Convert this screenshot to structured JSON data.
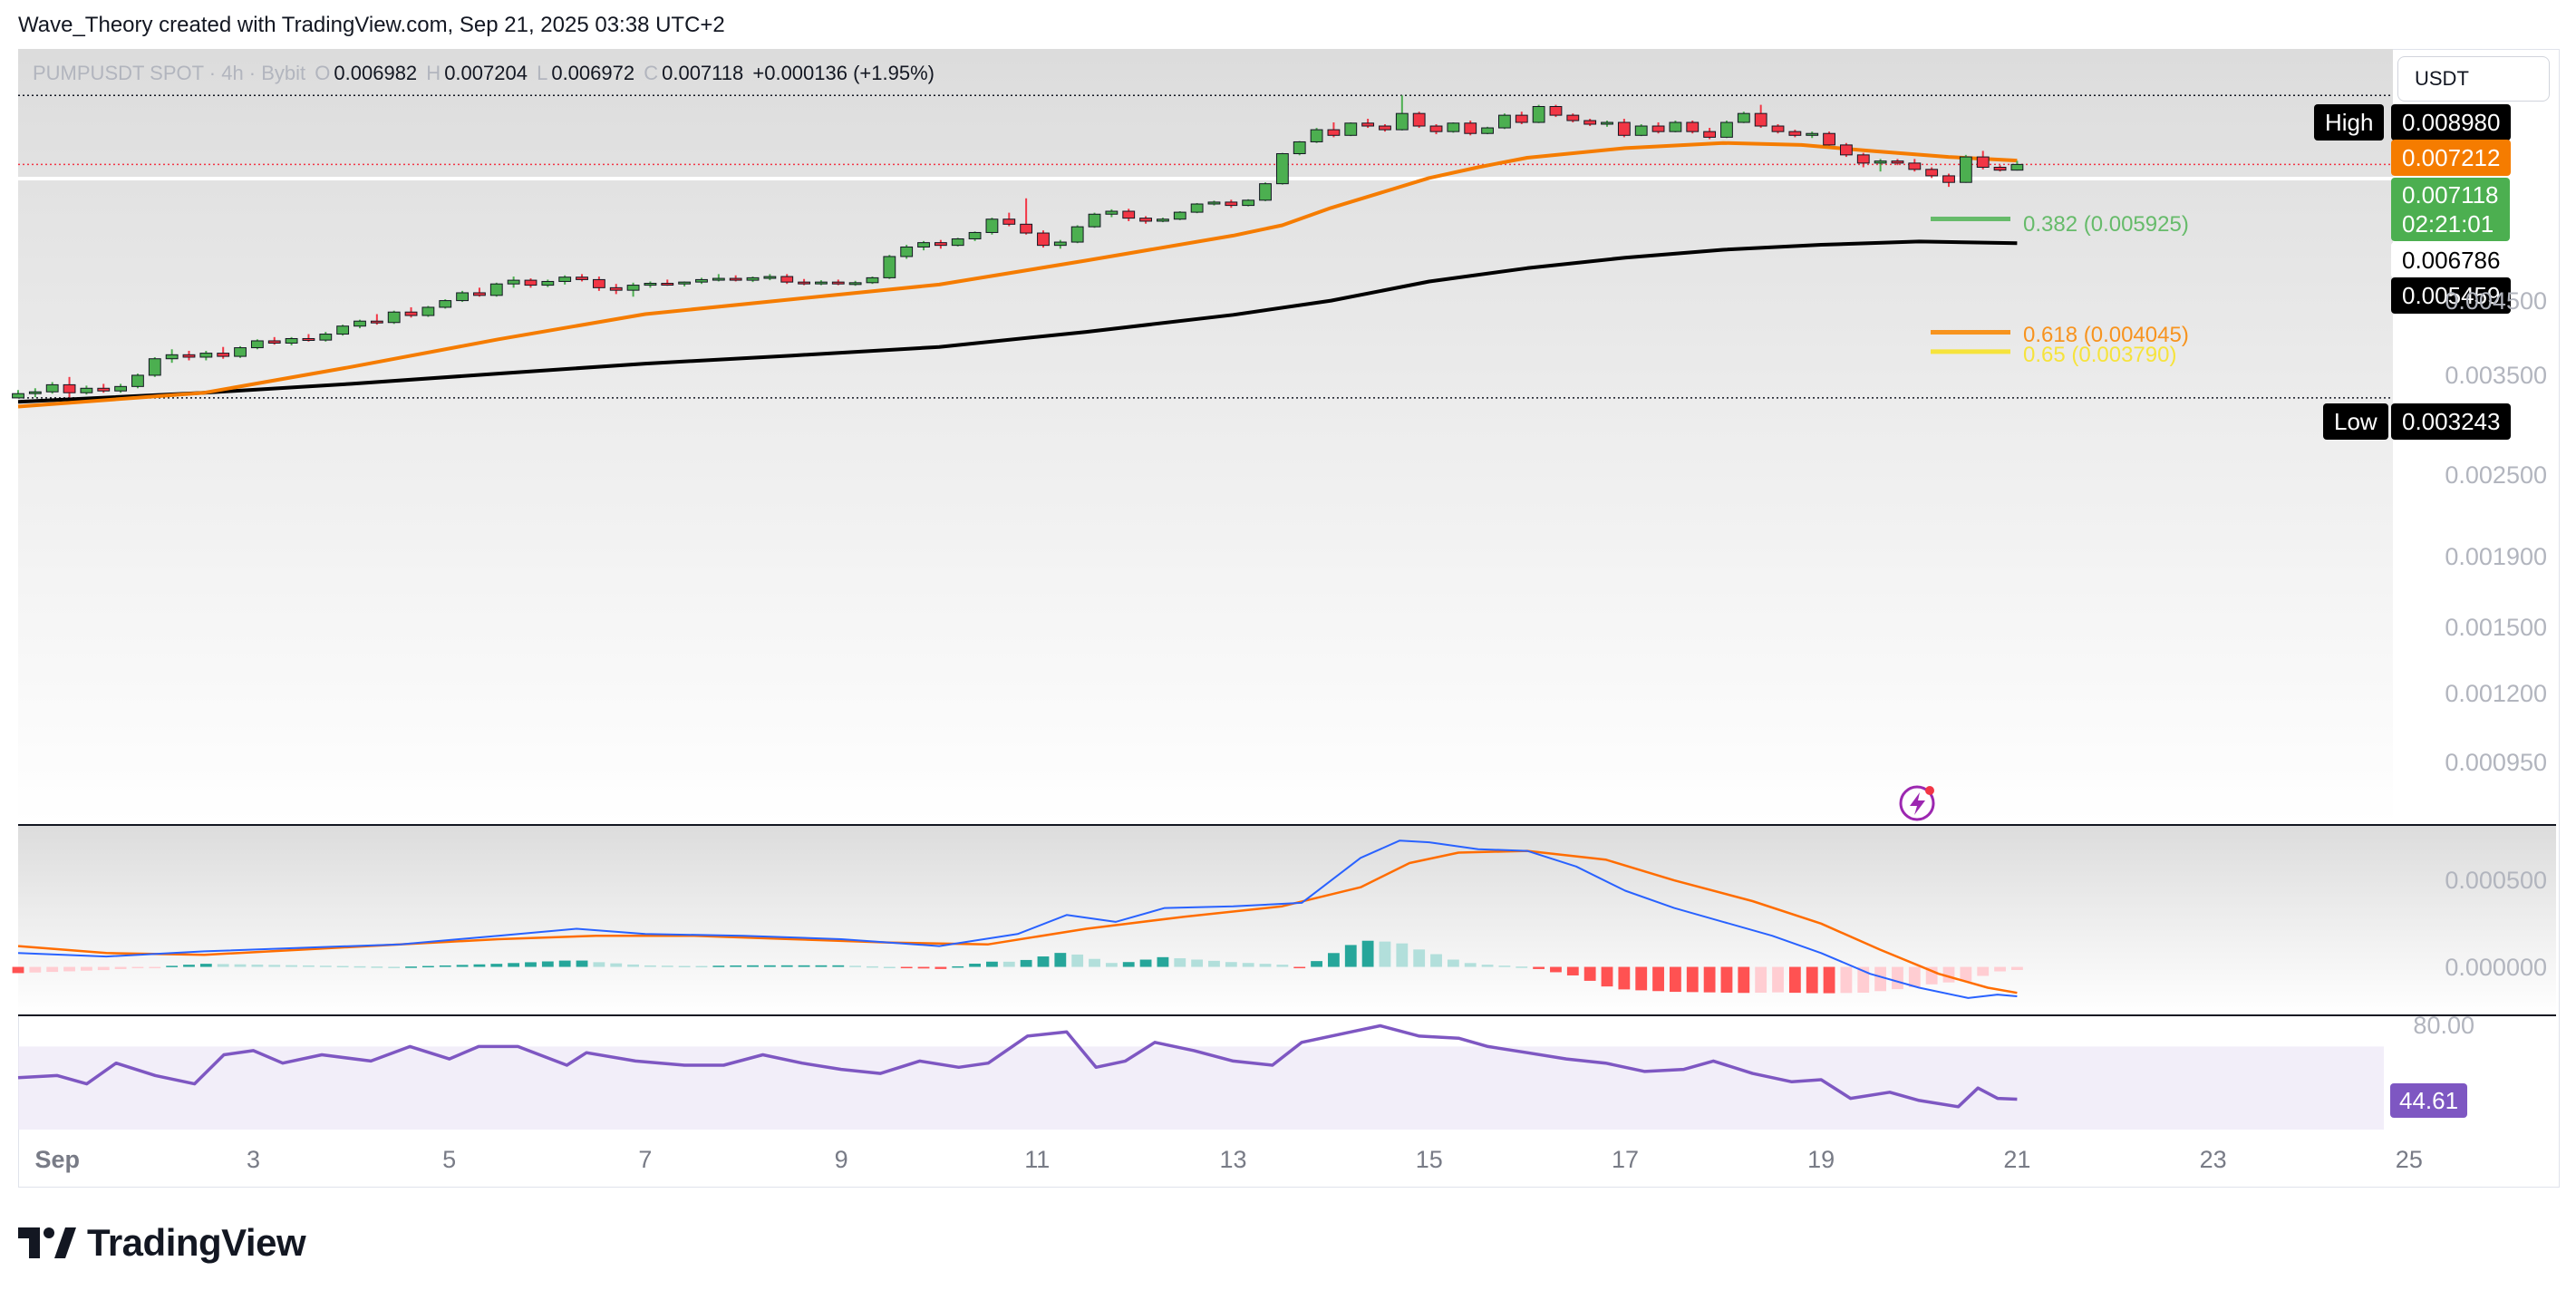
{
  "header": {
    "credit": "Wave_Theory created with TradingView.com, Sep 21, 2025 03:38 UTC+2"
  },
  "legend": {
    "symbol": "PUMPUSDT SPOT · 4h · Bybit",
    "o_label": "O",
    "o": "0.006982",
    "h_label": "H",
    "h": "0.007204",
    "l_label": "L",
    "l": "0.006972",
    "c_label": "C",
    "c": "0.007118",
    "change": "+0.000136 (+1.95%)"
  },
  "currency": "USDT",
  "tags": {
    "high_label": "High",
    "high_value": "0.008980",
    "ema50_value": "0.007212",
    "last_value": "0.007118",
    "countdown": "02:21:01",
    "level_value": "0.006786",
    "ema200_value": "0.005459",
    "low_label": "Low",
    "low_value": "0.003243",
    "rsi_value": "44.61"
  },
  "fib": {
    "f382": "0.382 (0.005925)",
    "f618": "0.618 (0.004045)",
    "f65": "0.65 (0.003790)"
  },
  "colors": {
    "up": "#4caf50",
    "down": "#f23645",
    "ema50": "#f57c00",
    "ema200": "#000000",
    "macd": "#2962ff",
    "signal": "#ff6d00",
    "rsi": "#7e57c2",
    "fib382": "#66bb6a",
    "fib618": "#f7931e",
    "fib65": "#f6e33c",
    "hist_up_strong": "#26a69a",
    "hist_up_weak": "#b2dfdb",
    "hist_down_strong": "#ff5252",
    "hist_down_weak": "#ffcdd2"
  },
  "chart_data": {
    "type": "candlestick",
    "scale": "log",
    "x_ticks": [
      "Sep",
      "3",
      "5",
      "7",
      "9",
      "11",
      "13",
      "15",
      "17",
      "19",
      "21",
      "23",
      "25"
    ],
    "x_tick_days": [
      1,
      3,
      5,
      7,
      9,
      11,
      13,
      15,
      17,
      19,
      21,
      23,
      25
    ],
    "x_range_days": [
      0.6,
      26.5
    ],
    "y_ticks": [
      0.0045,
      0.0035,
      0.0025,
      0.0019,
      0.0015,
      0.0012,
      0.00095
    ],
    "y_tick_labels": [
      "0.004500",
      "0.003500",
      "0.002500",
      "0.001900",
      "0.001500",
      "0.001200",
      "0.000950"
    ],
    "ylim": [
      0.00077,
      0.0105
    ],
    "ohlc": [
      [
        0.003243,
        0.00333,
        0.003243,
        0.00329
      ],
      [
        0.00329,
        0.00335,
        0.00325,
        0.00331
      ],
      [
        0.00331,
        0.00342,
        0.00329,
        0.00339
      ],
      [
        0.00339,
        0.00348,
        0.00325,
        0.0033
      ],
      [
        0.0033,
        0.00338,
        0.00328,
        0.00335
      ],
      [
        0.00335,
        0.0034,
        0.0033,
        0.00332
      ],
      [
        0.00332,
        0.0034,
        0.0033,
        0.00337
      ],
      [
        0.00337,
        0.00352,
        0.00335,
        0.0035
      ],
      [
        0.0035,
        0.00372,
        0.00348,
        0.0037
      ],
      [
        0.0037,
        0.00382,
        0.00365,
        0.00375
      ],
      [
        0.00375,
        0.0038,
        0.00368,
        0.00372
      ],
      [
        0.00372,
        0.0038,
        0.00368,
        0.00377
      ],
      [
        0.00377,
        0.00385,
        0.0037,
        0.00373
      ],
      [
        0.00373,
        0.00386,
        0.00371,
        0.00384
      ],
      [
        0.00384,
        0.00395,
        0.00382,
        0.00393
      ],
      [
        0.00393,
        0.00398,
        0.00388,
        0.0039
      ],
      [
        0.0039,
        0.00398,
        0.00387,
        0.00396
      ],
      [
        0.00396,
        0.00402,
        0.00392,
        0.00394
      ],
      [
        0.00394,
        0.00405,
        0.00392,
        0.00402
      ],
      [
        0.00402,
        0.00415,
        0.004,
        0.00413
      ],
      [
        0.00413,
        0.00422,
        0.0041,
        0.0042
      ],
      [
        0.0042,
        0.0043,
        0.00415,
        0.00418
      ],
      [
        0.00418,
        0.00435,
        0.00416,
        0.00433
      ],
      [
        0.00433,
        0.0044,
        0.00425,
        0.00428
      ],
      [
        0.00428,
        0.00442,
        0.00426,
        0.0044
      ],
      [
        0.0044,
        0.00452,
        0.00438,
        0.0045
      ],
      [
        0.0045,
        0.00465,
        0.00448,
        0.00462
      ],
      [
        0.00462,
        0.0047,
        0.00456,
        0.00458
      ],
      [
        0.00458,
        0.00478,
        0.00456,
        0.00476
      ],
      [
        0.00476,
        0.00488,
        0.0047,
        0.00482
      ],
      [
        0.00482,
        0.00485,
        0.0047,
        0.00474
      ],
      [
        0.00474,
        0.00483,
        0.00471,
        0.0048
      ],
      [
        0.0048,
        0.0049,
        0.00475,
        0.00487
      ],
      [
        0.00487,
        0.00492,
        0.0048,
        0.00483
      ],
      [
        0.00483,
        0.00488,
        0.00465,
        0.0047
      ],
      [
        0.0047,
        0.00476,
        0.0046,
        0.00466
      ],
      [
        0.00466,
        0.00478,
        0.00456,
        0.00474
      ],
      [
        0.00474,
        0.0048,
        0.0047,
        0.00477
      ],
      [
        0.00477,
        0.00483,
        0.00473,
        0.00476
      ],
      [
        0.00476,
        0.0048,
        0.00472,
        0.00479
      ],
      [
        0.00479,
        0.00486,
        0.00476,
        0.00483
      ],
      [
        0.00483,
        0.00492,
        0.0048,
        0.00485
      ],
      [
        0.00485,
        0.0049,
        0.0048,
        0.00482
      ],
      [
        0.00482,
        0.00488,
        0.00479,
        0.00486
      ],
      [
        0.00486,
        0.00492,
        0.00482,
        0.00488
      ],
      [
        0.00488,
        0.00492,
        0.00476,
        0.00479
      ],
      [
        0.00479,
        0.00484,
        0.00474,
        0.00477
      ],
      [
        0.00477,
        0.00482,
        0.00474,
        0.00479
      ],
      [
        0.00479,
        0.00483,
        0.00474,
        0.00476
      ],
      [
        0.00476,
        0.00481,
        0.00473,
        0.00478
      ],
      [
        0.00478,
        0.00488,
        0.00476,
        0.00486
      ],
      [
        0.00486,
        0.00525,
        0.00484,
        0.00522
      ],
      [
        0.00522,
        0.00543,
        0.00518,
        0.00539
      ],
      [
        0.00539,
        0.0055,
        0.00533,
        0.00547
      ],
      [
        0.00547,
        0.00552,
        0.00536,
        0.00542
      ],
      [
        0.00542,
        0.00556,
        0.0054,
        0.00554
      ],
      [
        0.00554,
        0.00568,
        0.0055,
        0.00566
      ],
      [
        0.00566,
        0.00595,
        0.00562,
        0.00592
      ],
      [
        0.00592,
        0.00605,
        0.00578,
        0.00582
      ],
      [
        0.00582,
        0.00635,
        0.00562,
        0.00565
      ],
      [
        0.00565,
        0.0057,
        0.00538,
        0.00542
      ],
      [
        0.00542,
        0.00552,
        0.00536,
        0.00548
      ],
      [
        0.00548,
        0.0058,
        0.00546,
        0.00577
      ],
      [
        0.00577,
        0.00605,
        0.00575,
        0.00602
      ],
      [
        0.00602,
        0.00612,
        0.00596,
        0.00608
      ],
      [
        0.00608,
        0.00613,
        0.00588,
        0.00594
      ],
      [
        0.00594,
        0.00598,
        0.00583,
        0.00588
      ],
      [
        0.00588,
        0.00595,
        0.00586,
        0.00592
      ],
      [
        0.00592,
        0.00608,
        0.0059,
        0.00606
      ],
      [
        0.00606,
        0.00625,
        0.00604,
        0.00623
      ],
      [
        0.00623,
        0.0063,
        0.0062,
        0.00627
      ],
      [
        0.00627,
        0.00632,
        0.00615,
        0.0062
      ],
      [
        0.0062,
        0.00633,
        0.00618,
        0.00631
      ],
      [
        0.00631,
        0.0067,
        0.00629,
        0.00667
      ],
      [
        0.00667,
        0.0074,
        0.00665,
        0.00738
      ],
      [
        0.00738,
        0.0077,
        0.00734,
        0.00768
      ],
      [
        0.00768,
        0.00805,
        0.00765,
        0.008
      ],
      [
        0.008,
        0.0082,
        0.0078,
        0.00785
      ],
      [
        0.00785,
        0.0082,
        0.00783,
        0.00818
      ],
      [
        0.00818,
        0.0083,
        0.00805,
        0.0081
      ],
      [
        0.0081,
        0.00815,
        0.00795,
        0.008
      ],
      [
        0.008,
        0.00898,
        0.00798,
        0.00845
      ],
      [
        0.00845,
        0.0085,
        0.00805,
        0.0081
      ],
      [
        0.0081,
        0.00815,
        0.00788,
        0.00795
      ],
      [
        0.00795,
        0.0082,
        0.00792,
        0.00818
      ],
      [
        0.00818,
        0.00825,
        0.00785,
        0.0079
      ],
      [
        0.0079,
        0.00808,
        0.00788,
        0.00805
      ],
      [
        0.00805,
        0.00845,
        0.00802,
        0.0084
      ],
      [
        0.0084,
        0.0085,
        0.00815,
        0.0082
      ],
      [
        0.0082,
        0.0087,
        0.00818,
        0.00865
      ],
      [
        0.00865,
        0.0087,
        0.00835,
        0.0084
      ],
      [
        0.0084,
        0.00845,
        0.0082,
        0.00825
      ],
      [
        0.00825,
        0.0083,
        0.0081,
        0.00815
      ],
      [
        0.00815,
        0.00825,
        0.00808,
        0.0082
      ],
      [
        0.0082,
        0.0083,
        0.0078,
        0.00785
      ],
      [
        0.00785,
        0.00815,
        0.00783,
        0.0081
      ],
      [
        0.0081,
        0.0082,
        0.0079,
        0.00795
      ],
      [
        0.00795,
        0.00825,
        0.00793,
        0.0082
      ],
      [
        0.0082,
        0.00825,
        0.0079,
        0.00795
      ],
      [
        0.00795,
        0.00805,
        0.00775,
        0.0078
      ],
      [
        0.0078,
        0.00825,
        0.00778,
        0.0082
      ],
      [
        0.0082,
        0.0085,
        0.00818,
        0.00845
      ],
      [
        0.00845,
        0.0087,
        0.00805,
        0.0081
      ],
      [
        0.0081,
        0.00815,
        0.0079,
        0.00795
      ],
      [
        0.00795,
        0.008,
        0.0078,
        0.00785
      ],
      [
        0.00785,
        0.00795,
        0.00778,
        0.0079
      ],
      [
        0.0079,
        0.00795,
        0.00758,
        0.0076
      ],
      [
        0.0076,
        0.00765,
        0.0073,
        0.00735
      ],
      [
        0.00735,
        0.0074,
        0.00705,
        0.00715
      ],
      [
        0.00715,
        0.00725,
        0.00695,
        0.0072
      ],
      [
        0.0072,
        0.00725,
        0.0071,
        0.00715
      ],
      [
        0.00715,
        0.00725,
        0.00695,
        0.007
      ],
      [
        0.007,
        0.00705,
        0.0068,
        0.00685
      ],
      [
        0.00685,
        0.0069,
        0.0066,
        0.0067
      ],
      [
        0.0067,
        0.00735,
        0.00669,
        0.0073
      ],
      [
        0.0073,
        0.00745,
        0.007,
        0.00705
      ],
      [
        0.00705,
        0.0071,
        0.00695,
        0.006982
      ],
      [
        0.006982,
        0.007204,
        0.006972,
        0.007118
      ]
    ],
    "ema50": [
      [
        0.6,
        0.00315
      ],
      [
        2.5,
        0.0033
      ],
      [
        4,
        0.0036
      ],
      [
        5.5,
        0.00395
      ],
      [
        7,
        0.0043
      ],
      [
        8.5,
        0.00452
      ],
      [
        10,
        0.00475
      ],
      [
        11.5,
        0.00515
      ],
      [
        13,
        0.0056
      ],
      [
        13.5,
        0.0058
      ],
      [
        14,
        0.00615
      ],
      [
        15,
        0.0068
      ],
      [
        15.5,
        0.00705
      ],
      [
        16,
        0.00728
      ],
      [
        17,
        0.00752
      ],
      [
        18,
        0.00765
      ],
      [
        18.8,
        0.0076
      ],
      [
        19.5,
        0.00745
      ],
      [
        20.3,
        0.0073
      ],
      [
        21,
        0.007212
      ]
    ],
    "ema200": [
      [
        0.6,
        0.0032
      ],
      [
        2.5,
        0.0033
      ],
      [
        4,
        0.0034
      ],
      [
        5.5,
        0.00352
      ],
      [
        7,
        0.00364
      ],
      [
        8.5,
        0.00374
      ],
      [
        10,
        0.00385
      ],
      [
        11.5,
        0.00405
      ],
      [
        13,
        0.00429
      ],
      [
        14,
        0.0045
      ],
      [
        15,
        0.0048
      ],
      [
        16,
        0.00502
      ],
      [
        17,
        0.0052
      ],
      [
        18,
        0.00534
      ],
      [
        19,
        0.00543
      ],
      [
        20,
        0.00549
      ],
      [
        21,
        0.005459
      ]
    ],
    "macd_indicator": {
      "yticks": [
        0.0005,
        0.0
      ],
      "ytick_labels": [
        "0.000500",
        "0.000000"
      ],
      "ylim": [
        -0.00028,
        0.00082
      ],
      "macd": [
        [
          0.6,
          8e-05
        ],
        [
          1.5,
          6e-05
        ],
        [
          2.5,
          9e-05
        ],
        [
          3.5,
          0.00011
        ],
        [
          4.5,
          0.00013
        ],
        [
          5.5,
          0.00018
        ],
        [
          6.3,
          0.00022
        ],
        [
          7,
          0.00019
        ],
        [
          8,
          0.00018
        ],
        [
          9,
          0.00016
        ],
        [
          10,
          0.00012
        ],
        [
          10.8,
          0.00019
        ],
        [
          11.3,
          0.0003
        ],
        [
          11.8,
          0.00026
        ],
        [
          12.3,
          0.00034
        ],
        [
          13,
          0.00035
        ],
        [
          13.7,
          0.00037
        ],
        [
          14.3,
          0.00063
        ],
        [
          14.7,
          0.00073
        ],
        [
          15,
          0.00072
        ],
        [
          15.5,
          0.00068
        ],
        [
          16,
          0.00067
        ],
        [
          16.5,
          0.00058
        ],
        [
          17,
          0.00044
        ],
        [
          17.5,
          0.00034
        ],
        [
          18,
          0.00026
        ],
        [
          18.5,
          0.00018
        ],
        [
          19,
          8e-05
        ],
        [
          19.5,
          -4e-05
        ],
        [
          20,
          -0.00012
        ],
        [
          20.5,
          -0.00018
        ],
        [
          20.8,
          -0.00016
        ],
        [
          21,
          -0.00017
        ]
      ],
      "signal": [
        [
          0.6,
          0.00012
        ],
        [
          1.5,
          8e-05
        ],
        [
          2.5,
          7e-05
        ],
        [
          3.5,
          0.0001
        ],
        [
          4.5,
          0.00013
        ],
        [
          5.5,
          0.00016
        ],
        [
          6.5,
          0.00018
        ],
        [
          7.5,
          0.00018
        ],
        [
          8.5,
          0.00016
        ],
        [
          9.5,
          0.00014
        ],
        [
          10.5,
          0.00013
        ],
        [
          11.5,
          0.00022
        ],
        [
          12.5,
          0.00029
        ],
        [
          13.5,
          0.00035
        ],
        [
          14.3,
          0.00046
        ],
        [
          14.8,
          0.0006
        ],
        [
          15.3,
          0.00066
        ],
        [
          16,
          0.00067
        ],
        [
          16.8,
          0.00062
        ],
        [
          17.5,
          0.0005
        ],
        [
          18.3,
          0.00038
        ],
        [
          19,
          0.00025
        ],
        [
          19.6,
          0.0001
        ],
        [
          20.2,
          -4e-05
        ],
        [
          20.7,
          -0.00012
        ],
        [
          21,
          -0.00015
        ]
      ]
    },
    "rsi_indicator": {
      "yticks": [
        80
      ],
      "ytick_labels": [
        "80.00"
      ],
      "ylim": [
        30,
        85
      ],
      "band": [
        30,
        70
      ],
      "values": [
        [
          0.6,
          55
        ],
        [
          1,
          56
        ],
        [
          1.3,
          52
        ],
        [
          1.6,
          62
        ],
        [
          2,
          56
        ],
        [
          2.4,
          52
        ],
        [
          2.7,
          66
        ],
        [
          3,
          68
        ],
        [
          3.3,
          62
        ],
        [
          3.7,
          66
        ],
        [
          4.2,
          63
        ],
        [
          4.6,
          70
        ],
        [
          5,
          64
        ],
        [
          5.3,
          70
        ],
        [
          5.7,
          70
        ],
        [
          6.2,
          61
        ],
        [
          6.4,
          67
        ],
        [
          6.9,
          63
        ],
        [
          7.4,
          61
        ],
        [
          7.8,
          61
        ],
        [
          8.2,
          66
        ],
        [
          8.6,
          62
        ],
        [
          9,
          59
        ],
        [
          9.4,
          57
        ],
        [
          9.8,
          63
        ],
        [
          10.2,
          60
        ],
        [
          10.5,
          62
        ],
        [
          10.9,
          75
        ],
        [
          11.3,
          77
        ],
        [
          11.6,
          60
        ],
        [
          11.9,
          63
        ],
        [
          12.2,
          72
        ],
        [
          12.6,
          68
        ],
        [
          13,
          63
        ],
        [
          13.4,
          61
        ],
        [
          13.7,
          72
        ],
        [
          14.2,
          77
        ],
        [
          14.5,
          80
        ],
        [
          14.9,
          75
        ],
        [
          15.3,
          74
        ],
        [
          15.6,
          70
        ],
        [
          16,
          67
        ],
        [
          16.4,
          64
        ],
        [
          16.8,
          62
        ],
        [
          17.2,
          58
        ],
        [
          17.6,
          59
        ],
        [
          17.9,
          63
        ],
        [
          18.3,
          57
        ],
        [
          18.7,
          53
        ],
        [
          19,
          54
        ],
        [
          19.3,
          45
        ],
        [
          19.7,
          48
        ],
        [
          20,
          44
        ],
        [
          20.4,
          41
        ],
        [
          20.6,
          50
        ],
        [
          20.8,
          45
        ],
        [
          21,
          44.61
        ]
      ]
    }
  }
}
